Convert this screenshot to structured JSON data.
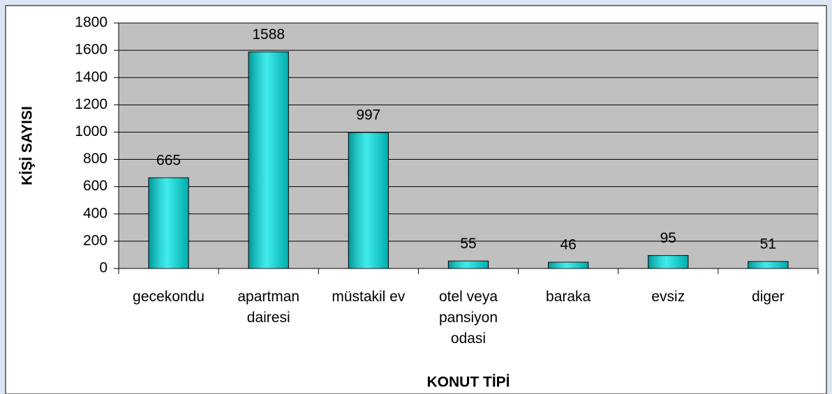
{
  "chart_data": {
    "type": "bar",
    "x_label": "KONUT TİPİ",
    "y_label": "KİŞİ SAYISI",
    "categories": [
      "gecekondu",
      "apartman dairesi",
      "müstakil ev",
      "otel veya pansiyon odasi",
      "baraka",
      "evsiz",
      "diger"
    ],
    "values": [
      665,
      1588,
      997,
      55,
      46,
      95,
      51
    ],
    "color": "#00e5e5",
    "ylim": [
      0,
      1800
    ],
    "yticks": [
      0,
      200,
      400,
      600,
      800,
      1000,
      1200,
      1400,
      1600,
      1800
    ],
    "grid": true
  }
}
